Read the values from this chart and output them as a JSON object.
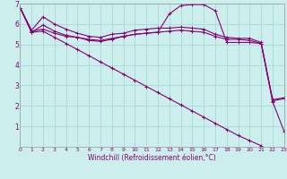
{
  "bg_color": "#cceeed",
  "grid_color": "#aadddb",
  "line_color": "#880077",
  "xlim": [
    0,
    23
  ],
  "ylim": [
    0,
    7
  ],
  "xlabel": "Windchill (Refroidissement éolien,°C)",
  "xticks": [
    0,
    1,
    2,
    3,
    4,
    5,
    6,
    7,
    8,
    9,
    10,
    11,
    12,
    13,
    14,
    15,
    16,
    17,
    18,
    19,
    20,
    21,
    22,
    23
  ],
  "yticks": [
    1,
    2,
    3,
    4,
    5,
    6,
    7
  ],
  "series": [
    [
      6.8,
      5.7,
      6.35,
      6.0,
      5.75,
      5.55,
      5.4,
      5.35,
      5.5,
      5.55,
      5.7,
      5.75,
      5.8,
      5.8,
      5.85,
      5.8,
      5.75,
      5.5,
      5.35,
      5.3,
      5.3,
      5.1,
      2.3,
      2.4
    ],
    [
      6.8,
      5.65,
      5.75,
      5.55,
      5.4,
      5.35,
      5.25,
      5.2,
      5.3,
      5.4,
      5.5,
      5.55,
      5.6,
      5.65,
      5.7,
      5.65,
      5.6,
      5.4,
      5.25,
      5.25,
      5.2,
      5.05,
      2.25,
      2.35
    ],
    [
      6.8,
      5.6,
      5.95,
      5.65,
      5.45,
      5.35,
      5.2,
      5.15,
      5.25,
      5.4,
      5.5,
      5.55,
      5.6,
      6.5,
      6.9,
      6.95,
      6.95,
      6.65,
      5.1,
      5.1,
      5.1,
      5.05,
      2.2,
      0.75
    ],
    [
      6.8,
      5.6,
      5.65,
      5.35,
      5.05,
      4.75,
      4.45,
      4.15,
      3.85,
      3.55,
      3.25,
      2.95,
      2.65,
      2.35,
      2.05,
      1.75,
      1.45,
      1.15,
      0.85,
      0.55,
      0.3,
      0.05,
      null,
      null
    ]
  ]
}
